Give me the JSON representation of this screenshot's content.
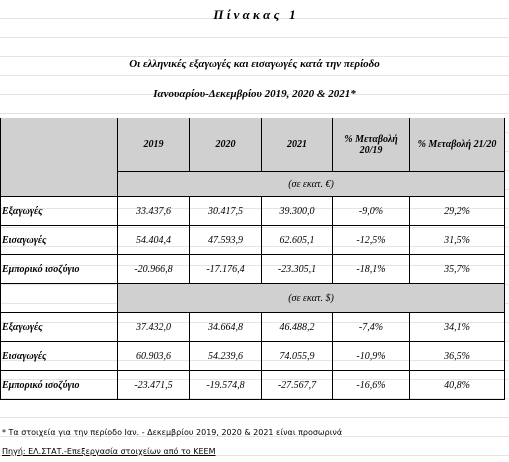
{
  "title": "Π ί ν α κ α ς   1",
  "subtitle": [
    "Οι ελληνικές εξαγωγές και εισαγωγές κατά την περίοδο",
    "Ιανουαρίου-Δεκεμβρίου 2019, 2020 & 2021*"
  ],
  "table": {
    "header": [
      "2019",
      "2020",
      "2021",
      "% Μεταβολή 20/19",
      "% Μεταβολή 21/20"
    ],
    "sections": [
      {
        "unit": "(σε εκατ. €)",
        "rows": [
          [
            "Εξαγωγές",
            "33.437,6",
            "30.417,5",
            "39.300,0",
            "-9,0%",
            "29,2%"
          ],
          [
            "Εισαγωγές",
            "54.404,4",
            "47.593,9",
            "62.605,1",
            "-12,5%",
            "31,5%"
          ],
          [
            "Εμπορικό ισοζύγιο",
            "-20.966,8",
            "-17.176,4",
            "-23.305,1",
            "-18,1%",
            "35,7%"
          ]
        ]
      },
      {
        "unit": "(σε εκατ. $)",
        "rows": [
          [
            "Εξαγωγές",
            "37.432,0",
            "34.664,8",
            "46.488,2",
            "-7,4%",
            "34,1%"
          ],
          [
            "Εισαγωγές",
            "60.903,6",
            "54.239,6",
            "74.055,9",
            "-10,9%",
            "36,5%"
          ],
          [
            "Εμπορικό ισοζύγιο",
            "-23.471,5",
            "-19.574,8",
            "-27.567,7",
            "-16,6%",
            "40,8%"
          ]
        ]
      }
    ]
  },
  "footnotes": [
    "* Τα στοιχεία για την περίοδο Ιαν. - Δεκεμβρίου 2019, 2020 & 2021 είναι προσωρινά",
    "Πηγή: ΕΛ.ΣΤΑΤ.-Επεξεργασία στοιχείων από το ΚΕΕΜ"
  ]
}
